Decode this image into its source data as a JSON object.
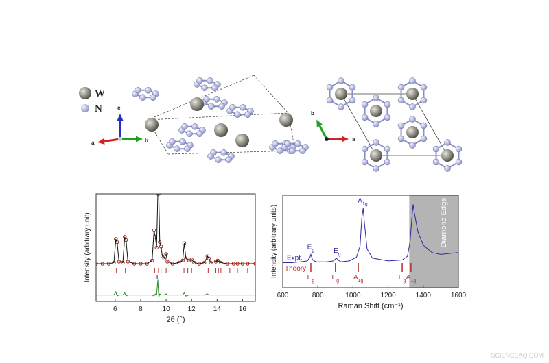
{
  "structure": {
    "legend": [
      "W",
      "N"
    ],
    "axes_left": [
      "c",
      "a",
      "b"
    ],
    "axes_right": [
      "b",
      "a"
    ]
  },
  "chart_data": [
    {
      "type": "line",
      "xlabel": "2θ (°)",
      "ylabel": "Intensity (arbitrary unit)",
      "xlim": [
        4.5,
        17
      ],
      "ylim": [
        0,
        100
      ],
      "xticks": [
        6,
        8,
        10,
        12,
        14,
        16
      ],
      "x": [
        4.5,
        5,
        5.5,
        5.9,
        6.05,
        6.15,
        6.3,
        6.6,
        6.75,
        6.85,
        7,
        7.5,
        8,
        8.5,
        8.9,
        9.05,
        9.15,
        9.25,
        9.35,
        9.42,
        9.5,
        9.6,
        9.7,
        9.85,
        10,
        10.1,
        10.5,
        11,
        11.3,
        11.42,
        11.55,
        11.8,
        12,
        12.2,
        12.6,
        13,
        13.25,
        13.35,
        13.5,
        13.9,
        14.05,
        14.3,
        14.8,
        15.3,
        15.6,
        16,
        16.4,
        17
      ],
      "series": [
        {
          "style": "marker",
          "color": "#a0281e",
          "values": [
            35,
            35,
            35,
            36,
            58,
            55,
            37,
            36,
            60,
            57,
            37,
            35,
            35,
            35,
            38,
            66,
            60,
            50,
            100,
            100,
            55,
            51,
            42,
            40,
            44,
            37,
            35,
            36,
            38,
            54,
            40,
            38,
            39,
            36,
            35,
            36,
            42,
            40,
            36,
            37,
            38,
            36,
            35,
            35,
            35,
            35,
            35,
            35
          ]
        },
        {
          "style": "line",
          "color": "#111111",
          "values": [
            35,
            35,
            35,
            36,
            58,
            55,
            37,
            36,
            60,
            57,
            37,
            35,
            35,
            35,
            38,
            66,
            60,
            50,
            100,
            100,
            55,
            51,
            42,
            40,
            44,
            37,
            35,
            36,
            38,
            54,
            40,
            38,
            39,
            36,
            35,
            36,
            42,
            40,
            36,
            37,
            38,
            36,
            35,
            35,
            35,
            35,
            35,
            35
          ]
        },
        {
          "style": "line",
          "color": "#2a8a2a",
          "values": [
            6,
            6,
            6,
            6,
            9,
            5,
            6,
            6,
            8,
            5,
            6,
            6,
            6,
            6,
            6,
            5,
            7,
            6,
            20,
            4,
            7,
            6,
            6,
            6,
            7,
            6,
            6,
            6,
            6,
            8,
            5,
            6,
            6,
            6,
            6,
            6,
            7,
            6,
            6,
            6,
            6,
            6,
            6,
            6,
            6,
            6,
            6,
            6
          ]
        }
      ],
      "bragg": [
        {
          "color": "#b03030",
          "x": [
            6.1,
            6.8,
            9.1,
            9.4,
            9.6,
            10.0,
            11.4,
            11.7,
            12.0,
            13.3,
            13.9,
            14.1,
            14.3,
            15.0,
            15.6,
            16.4
          ]
        },
        {
          "color": "#1a2a7a",
          "x": [
            9.3
          ]
        }
      ]
    },
    {
      "type": "line",
      "xlabel": "Raman Shift (cm⁻¹)",
      "ylabel": "Intensity (arbitrary units)",
      "xlim": [
        600,
        1600
      ],
      "ylim": [
        0,
        100
      ],
      "xticks": [
        600,
        800,
        1000,
        1200,
        1400,
        1600
      ],
      "x": [
        600,
        650,
        700,
        740,
        755,
        760,
        770,
        790,
        850,
        890,
        905,
        915,
        930,
        980,
        1020,
        1040,
        1050,
        1058,
        1065,
        1080,
        1110,
        1200,
        1280,
        1310,
        1325,
        1335,
        1342,
        1350,
        1370,
        1400,
        1450,
        1500,
        1550,
        1600
      ],
      "series": [
        {
          "style": "line",
          "color": "#2a2aa0",
          "values": [
            27,
            27,
            28,
            29,
            33,
            36,
            30,
            28,
            28,
            29,
            32,
            30,
            28,
            29,
            33,
            45,
            75,
            86,
            70,
            42,
            32,
            29,
            30,
            34,
            50,
            75,
            90,
            80,
            60,
            46,
            38,
            36,
            37,
            38
          ]
        }
      ],
      "shaded": {
        "from": 1320,
        "to": 1600,
        "label": "Diamond Edge"
      },
      "expt_label": "Expt.",
      "peak_labels": [
        {
          "x": 760,
          "base": "E",
          "sub": "g"
        },
        {
          "x": 910,
          "base": "E",
          "sub": "g"
        },
        {
          "x": 1055,
          "base": "A",
          "sub": "1g"
        }
      ],
      "theory": {
        "label": "Theory",
        "color": "#b03030",
        "x": [
          760,
          900,
          1030,
          1280,
          1330
        ],
        "labels": [
          {
            "base": "E",
            "sub": "g"
          },
          {
            "base": "E",
            "sub": "g"
          },
          {
            "base": "A",
            "sub": "1g"
          },
          {
            "base": "E",
            "sub": "g"
          },
          {
            "base": "A",
            "sub": "1g"
          }
        ]
      }
    }
  ],
  "watermark": "SCIENCEAQ.COM"
}
